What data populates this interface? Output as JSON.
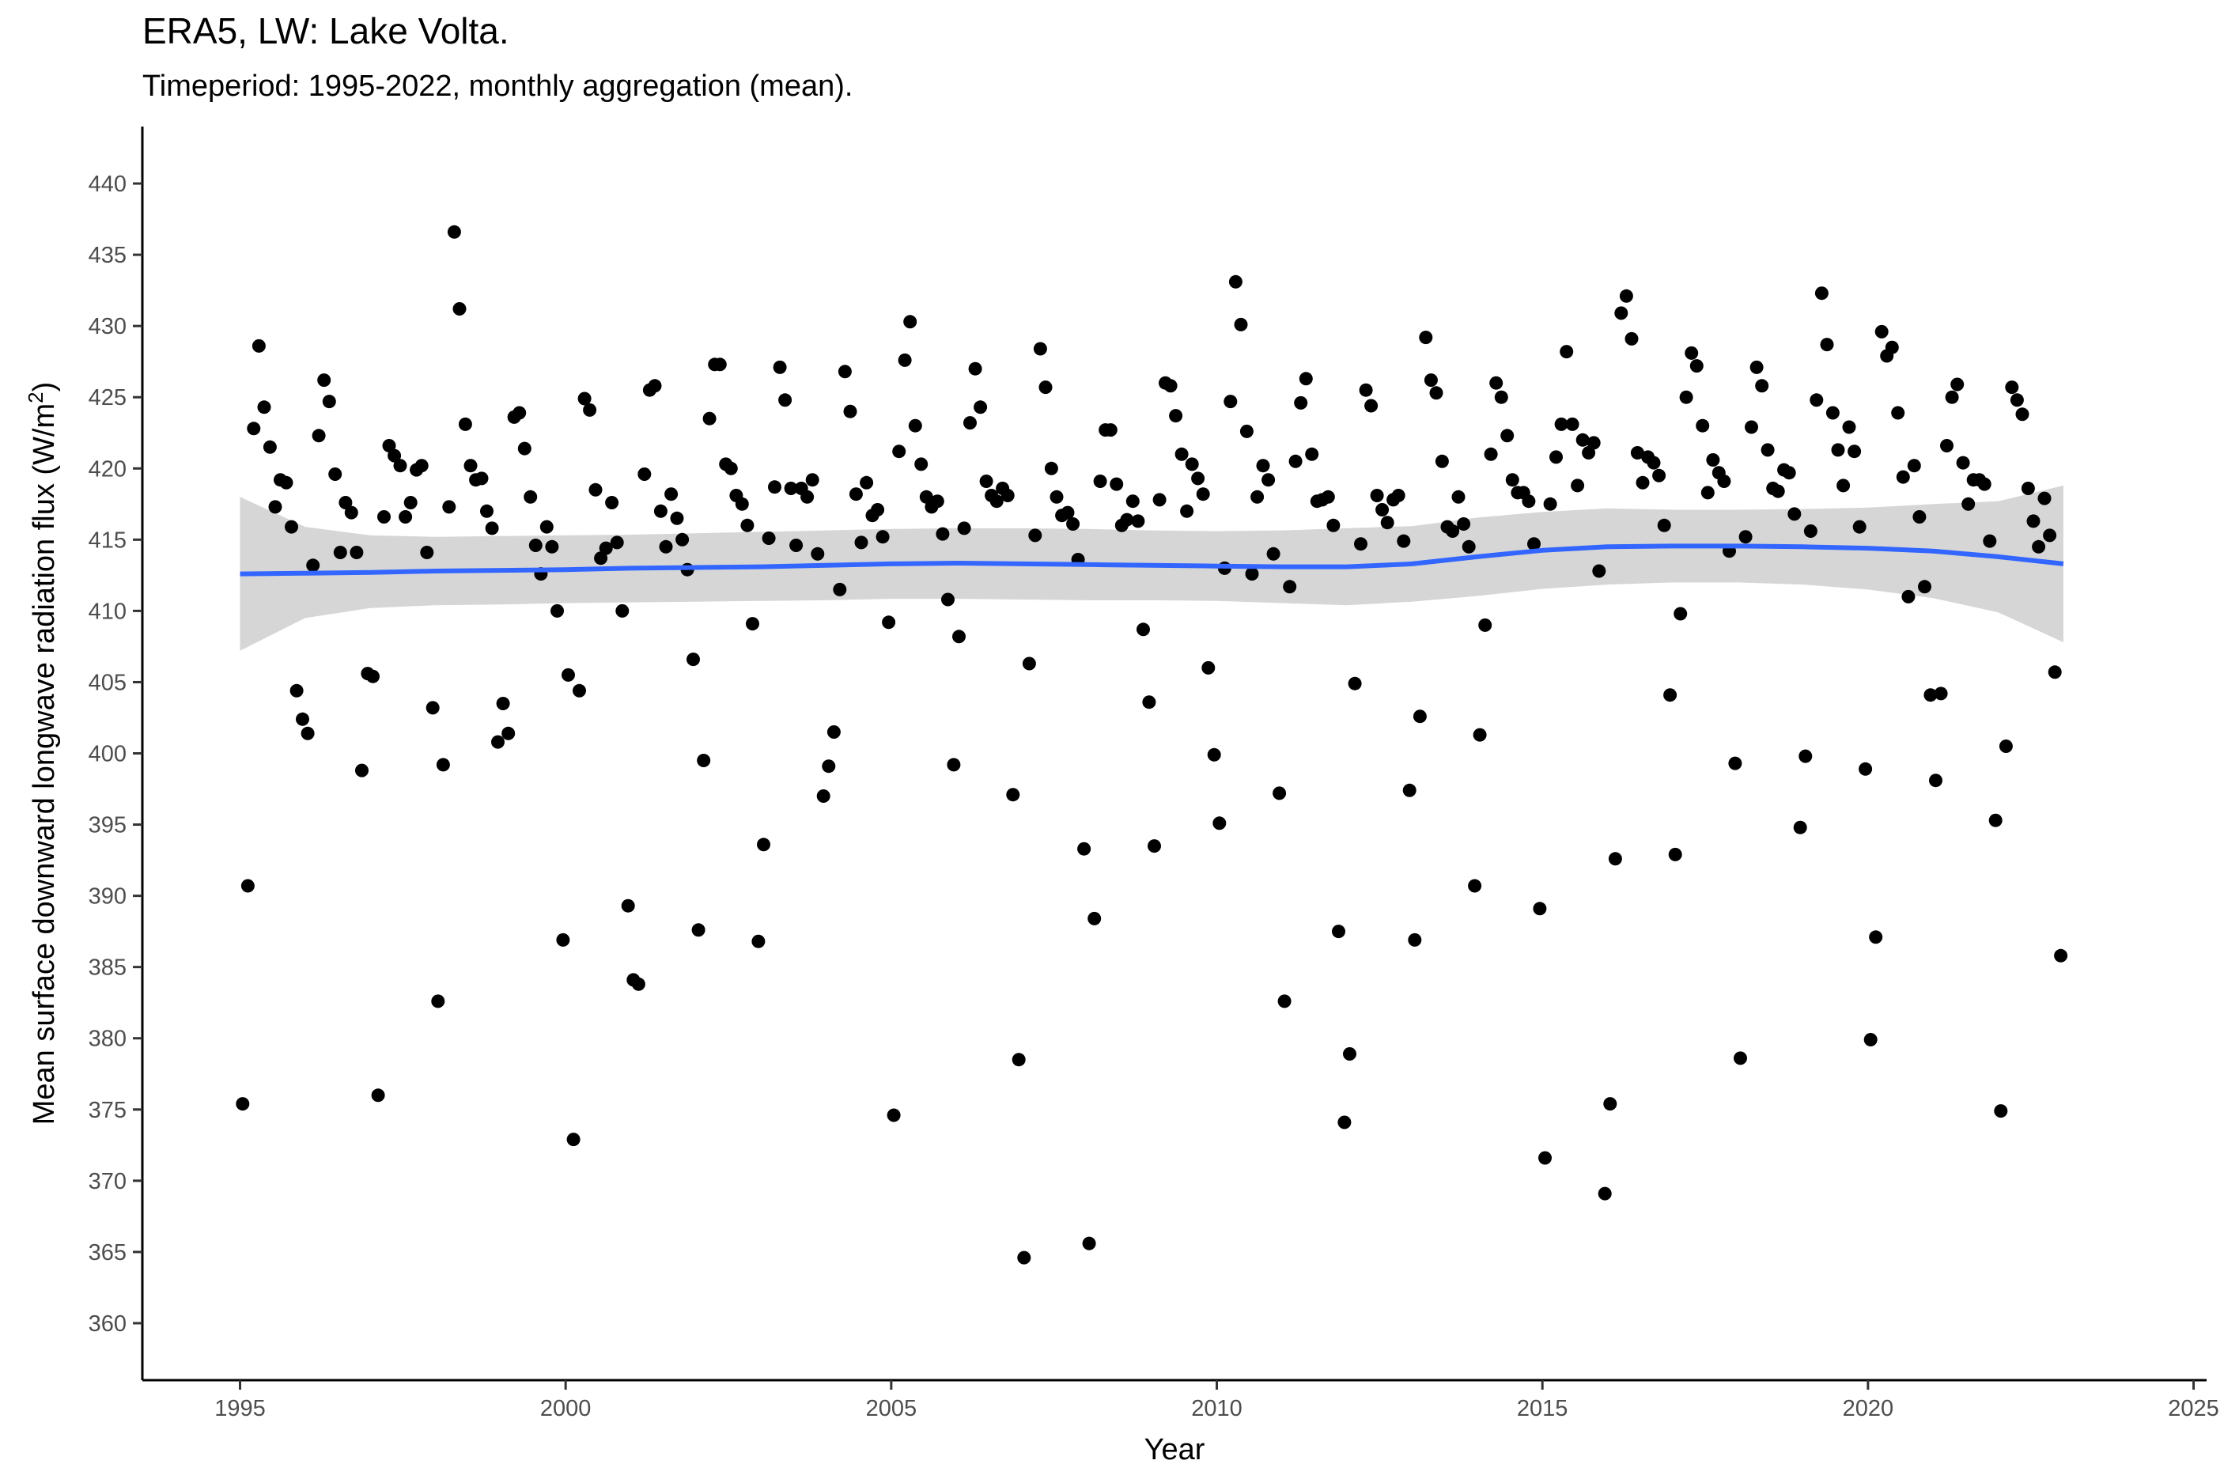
{
  "title": "ERA5, LW: Lake Volta.",
  "subtitle": "Timeperiod: 1995-2022, monthly aggregation (mean).",
  "chart_data": {
    "type": "scatter",
    "xlabel": "Year",
    "ylabel": "Mean surface downward longwave radiation flux (W/m²)",
    "ylabel_parts": {
      "main": "Mean surface downward longwave radiation flux (W/m",
      "sup": "2",
      "end": ")"
    },
    "xlim": [
      1993.5,
      2025.2
    ],
    "ylim": [
      356,
      444
    ],
    "x_ticks": [
      1995,
      2000,
      2005,
      2010,
      2015,
      2020,
      2025
    ],
    "y_ticks": [
      360,
      365,
      370,
      375,
      380,
      385,
      390,
      395,
      400,
      405,
      410,
      415,
      420,
      425,
      430,
      435,
      440
    ],
    "grid": false,
    "colors": {
      "points": "#000000",
      "smooth_line": "#3366ff",
      "ribbon": "#cccccc"
    },
    "points": [
      [
        1995.04,
        375.4
      ],
      [
        1995.12,
        390.7
      ],
      [
        1995.21,
        422.8
      ],
      [
        1995.29,
        428.6
      ],
      [
        1995.37,
        424.3
      ],
      [
        1995.46,
        421.5
      ],
      [
        1995.54,
        417.3
      ],
      [
        1995.62,
        419.2
      ],
      [
        1995.71,
        419.0
      ],
      [
        1995.79,
        415.9
      ],
      [
        1995.87,
        404.4
      ],
      [
        1995.96,
        402.4
      ],
      [
        1996.04,
        401.4
      ],
      [
        1996.12,
        413.2
      ],
      [
        1996.21,
        422.3
      ],
      [
        1996.29,
        426.2
      ],
      [
        1996.37,
        424.7
      ],
      [
        1996.46,
        419.6
      ],
      [
        1996.54,
        414.1
      ],
      [
        1996.62,
        417.6
      ],
      [
        1996.71,
        416.9
      ],
      [
        1996.79,
        414.1
      ],
      [
        1996.87,
        398.8
      ],
      [
        1996.96,
        405.6
      ],
      [
        1997.04,
        405.4
      ],
      [
        1997.12,
        376.0
      ],
      [
        1997.21,
        416.6
      ],
      [
        1997.29,
        421.6
      ],
      [
        1997.37,
        420.9
      ],
      [
        1997.46,
        420.2
      ],
      [
        1997.54,
        416.6
      ],
      [
        1997.62,
        417.6
      ],
      [
        1997.71,
        419.9
      ],
      [
        1997.79,
        420.2
      ],
      [
        1997.87,
        414.1
      ],
      [
        1997.96,
        403.2
      ],
      [
        1998.04,
        382.6
      ],
      [
        1998.12,
        399.2
      ],
      [
        1998.21,
        417.3
      ],
      [
        1998.29,
        436.6
      ],
      [
        1998.37,
        431.2
      ],
      [
        1998.46,
        423.1
      ],
      [
        1998.54,
        420.2
      ],
      [
        1998.62,
        419.2
      ],
      [
        1998.71,
        419.3
      ],
      [
        1998.79,
        417.0
      ],
      [
        1998.87,
        415.8
      ],
      [
        1998.96,
        400.8
      ],
      [
        1999.04,
        403.5
      ],
      [
        1999.12,
        401.4
      ],
      [
        1999.21,
        423.6
      ],
      [
        1999.29,
        423.9
      ],
      [
        1999.37,
        421.4
      ],
      [
        1999.46,
        418.0
      ],
      [
        1999.54,
        414.6
      ],
      [
        1999.62,
        412.6
      ],
      [
        1999.71,
        415.9
      ],
      [
        1999.79,
        414.5
      ],
      [
        1999.87,
        410.0
      ],
      [
        1999.96,
        386.9
      ],
      [
        2000.04,
        405.5
      ],
      [
        2000.12,
        372.9
      ],
      [
        2000.21,
        404.4
      ],
      [
        2000.29,
        424.9
      ],
      [
        2000.37,
        424.1
      ],
      [
        2000.46,
        418.5
      ],
      [
        2000.54,
        413.7
      ],
      [
        2000.62,
        414.4
      ],
      [
        2000.71,
        417.6
      ],
      [
        2000.79,
        414.8
      ],
      [
        2000.87,
        410.0
      ],
      [
        2000.96,
        389.3
      ],
      [
        2001.04,
        384.1
      ],
      [
        2001.12,
        383.8
      ],
      [
        2001.21,
        419.6
      ],
      [
        2001.29,
        425.5
      ],
      [
        2001.37,
        425.8
      ],
      [
        2001.46,
        417.0
      ],
      [
        2001.54,
        414.5
      ],
      [
        2001.62,
        418.2
      ],
      [
        2001.71,
        416.5
      ],
      [
        2001.79,
        415.0
      ],
      [
        2001.87,
        412.9
      ],
      [
        2001.96,
        406.6
      ],
      [
        2002.04,
        387.6
      ],
      [
        2002.12,
        399.5
      ],
      [
        2002.21,
        423.5
      ],
      [
        2002.29,
        427.3
      ],
      [
        2002.37,
        427.3
      ],
      [
        2002.46,
        420.3
      ],
      [
        2002.54,
        420.0
      ],
      [
        2002.62,
        418.1
      ],
      [
        2002.71,
        417.5
      ],
      [
        2002.79,
        416.0
      ],
      [
        2002.87,
        409.1
      ],
      [
        2002.96,
        386.8
      ],
      [
        2003.04,
        393.6
      ],
      [
        2003.12,
        415.1
      ],
      [
        2003.21,
        418.7
      ],
      [
        2003.29,
        427.1
      ],
      [
        2003.37,
        424.8
      ],
      [
        2003.46,
        418.6
      ],
      [
        2003.54,
        414.6
      ],
      [
        2003.62,
        418.6
      ],
      [
        2003.71,
        418.0
      ],
      [
        2003.79,
        419.2
      ],
      [
        2003.87,
        414.0
      ],
      [
        2003.96,
        397.0
      ],
      [
        2004.04,
        399.1
      ],
      [
        2004.12,
        401.5
      ],
      [
        2004.21,
        411.5
      ],
      [
        2004.29,
        426.8
      ],
      [
        2004.37,
        424.0
      ],
      [
        2004.46,
        418.2
      ],
      [
        2004.54,
        414.8
      ],
      [
        2004.62,
        419.0
      ],
      [
        2004.71,
        416.7
      ],
      [
        2004.79,
        417.1
      ],
      [
        2004.87,
        415.2
      ],
      [
        2004.96,
        409.2
      ],
      [
        2005.04,
        374.6
      ],
      [
        2005.12,
        421.2
      ],
      [
        2005.21,
        427.6
      ],
      [
        2005.29,
        430.3
      ],
      [
        2005.37,
        423.0
      ],
      [
        2005.46,
        420.3
      ],
      [
        2005.54,
        418.0
      ],
      [
        2005.62,
        417.3
      ],
      [
        2005.71,
        417.7
      ],
      [
        2005.79,
        415.4
      ],
      [
        2005.87,
        410.8
      ],
      [
        2005.96,
        399.2
      ],
      [
        2006.04,
        408.2
      ],
      [
        2006.12,
        415.8
      ],
      [
        2006.21,
        423.2
      ],
      [
        2006.29,
        427.0
      ],
      [
        2006.37,
        424.3
      ],
      [
        2006.46,
        419.1
      ],
      [
        2006.54,
        418.1
      ],
      [
        2006.62,
        417.7
      ],
      [
        2006.71,
        418.6
      ],
      [
        2006.79,
        418.1
      ],
      [
        2006.87,
        397.1
      ],
      [
        2006.96,
        378.5
      ],
      [
        2007.04,
        364.6
      ],
      [
        2007.12,
        406.3
      ],
      [
        2007.21,
        415.3
      ],
      [
        2007.29,
        428.4
      ],
      [
        2007.37,
        425.7
      ],
      [
        2007.46,
        420.0
      ],
      [
        2007.54,
        418.0
      ],
      [
        2007.62,
        416.7
      ],
      [
        2007.71,
        416.9
      ],
      [
        2007.79,
        416.1
      ],
      [
        2007.87,
        413.6
      ],
      [
        2007.96,
        393.3
      ],
      [
        2008.04,
        365.6
      ],
      [
        2008.12,
        388.4
      ],
      [
        2008.21,
        419.1
      ],
      [
        2008.29,
        422.7
      ],
      [
        2008.37,
        422.7
      ],
      [
        2008.46,
        418.9
      ],
      [
        2008.54,
        416.0
      ],
      [
        2008.62,
        416.4
      ],
      [
        2008.71,
        417.7
      ],
      [
        2008.79,
        416.3
      ],
      [
        2008.87,
        408.7
      ],
      [
        2008.96,
        403.6
      ],
      [
        2009.04,
        393.5
      ],
      [
        2009.12,
        417.8
      ],
      [
        2009.21,
        426.0
      ],
      [
        2009.29,
        425.8
      ],
      [
        2009.37,
        423.7
      ],
      [
        2009.46,
        421.0
      ],
      [
        2009.54,
        417.0
      ],
      [
        2009.62,
        420.3
      ],
      [
        2009.71,
        419.3
      ],
      [
        2009.79,
        418.2
      ],
      [
        2009.87,
        406.0
      ],
      [
        2009.96,
        399.9
      ],
      [
        2010.04,
        395.1
      ],
      [
        2010.12,
        413.0
      ],
      [
        2010.21,
        424.7
      ],
      [
        2010.29,
        433.1
      ],
      [
        2010.37,
        430.1
      ],
      [
        2010.46,
        422.6
      ],
      [
        2010.54,
        412.6
      ],
      [
        2010.62,
        418.0
      ],
      [
        2010.71,
        420.2
      ],
      [
        2010.79,
        419.2
      ],
      [
        2010.87,
        414.0
      ],
      [
        2010.96,
        397.2
      ],
      [
        2011.04,
        382.6
      ],
      [
        2011.12,
        411.7
      ],
      [
        2011.21,
        420.5
      ],
      [
        2011.29,
        424.6
      ],
      [
        2011.37,
        426.3
      ],
      [
        2011.46,
        421.0
      ],
      [
        2011.54,
        417.7
      ],
      [
        2011.62,
        417.8
      ],
      [
        2011.71,
        418.0
      ],
      [
        2011.79,
        416.0
      ],
      [
        2011.87,
        387.5
      ],
      [
        2011.96,
        374.1
      ],
      [
        2012.04,
        378.9
      ],
      [
        2012.12,
        404.9
      ],
      [
        2012.21,
        414.7
      ],
      [
        2012.29,
        425.5
      ],
      [
        2012.37,
        424.4
      ],
      [
        2012.46,
        418.1
      ],
      [
        2012.54,
        417.1
      ],
      [
        2012.62,
        416.2
      ],
      [
        2012.71,
        417.8
      ],
      [
        2012.79,
        418.1
      ],
      [
        2012.87,
        414.9
      ],
      [
        2012.96,
        397.4
      ],
      [
        2013.04,
        386.9
      ],
      [
        2013.12,
        402.6
      ],
      [
        2013.21,
        429.2
      ],
      [
        2013.29,
        426.2
      ],
      [
        2013.37,
        425.3
      ],
      [
        2013.46,
        420.5
      ],
      [
        2013.54,
        415.9
      ],
      [
        2013.62,
        415.6
      ],
      [
        2013.71,
        418.0
      ],
      [
        2013.79,
        416.1
      ],
      [
        2013.87,
        414.5
      ],
      [
        2013.96,
        390.7
      ],
      [
        2014.04,
        401.3
      ],
      [
        2014.12,
        409.0
      ],
      [
        2014.21,
        421.0
      ],
      [
        2014.29,
        426.0
      ],
      [
        2014.37,
        425.0
      ],
      [
        2014.46,
        422.3
      ],
      [
        2014.54,
        419.2
      ],
      [
        2014.62,
        418.3
      ],
      [
        2014.71,
        418.3
      ],
      [
        2014.79,
        417.7
      ],
      [
        2014.87,
        414.7
      ],
      [
        2014.96,
        389.1
      ],
      [
        2015.04,
        371.6
      ],
      [
        2015.12,
        417.5
      ],
      [
        2015.21,
        420.8
      ],
      [
        2015.29,
        423.1
      ],
      [
        2015.37,
        428.2
      ],
      [
        2015.46,
        423.1
      ],
      [
        2015.54,
        418.8
      ],
      [
        2015.62,
        422.0
      ],
      [
        2015.71,
        421.1
      ],
      [
        2015.79,
        421.8
      ],
      [
        2015.87,
        412.8
      ],
      [
        2015.96,
        369.1
      ],
      [
        2016.04,
        375.4
      ],
      [
        2016.12,
        392.6
      ],
      [
        2016.21,
        430.9
      ],
      [
        2016.29,
        432.1
      ],
      [
        2016.37,
        429.1
      ],
      [
        2016.46,
        421.1
      ],
      [
        2016.54,
        419.0
      ],
      [
        2016.62,
        420.8
      ],
      [
        2016.71,
        420.4
      ],
      [
        2016.79,
        419.5
      ],
      [
        2016.87,
        416.0
      ],
      [
        2016.96,
        404.1
      ],
      [
        2017.04,
        392.9
      ],
      [
        2017.12,
        409.8
      ],
      [
        2017.21,
        425.0
      ],
      [
        2017.29,
        428.1
      ],
      [
        2017.37,
        427.2
      ],
      [
        2017.46,
        423.0
      ],
      [
        2017.54,
        418.3
      ],
      [
        2017.62,
        420.6
      ],
      [
        2017.71,
        419.7
      ],
      [
        2017.79,
        419.1
      ],
      [
        2017.87,
        414.2
      ],
      [
        2017.96,
        399.3
      ],
      [
        2018.04,
        378.6
      ],
      [
        2018.12,
        415.2
      ],
      [
        2018.21,
        422.9
      ],
      [
        2018.29,
        427.1
      ],
      [
        2018.37,
        425.8
      ],
      [
        2018.46,
        421.3
      ],
      [
        2018.54,
        418.6
      ],
      [
        2018.62,
        418.4
      ],
      [
        2018.71,
        419.9
      ],
      [
        2018.79,
        419.7
      ],
      [
        2018.87,
        416.8
      ],
      [
        2018.96,
        394.8
      ],
      [
        2019.04,
        399.8
      ],
      [
        2019.12,
        415.6
      ],
      [
        2019.21,
        424.8
      ],
      [
        2019.29,
        432.3
      ],
      [
        2019.37,
        428.7
      ],
      [
        2019.46,
        423.9
      ],
      [
        2019.54,
        421.3
      ],
      [
        2019.62,
        418.8
      ],
      [
        2019.71,
        422.9
      ],
      [
        2019.79,
        421.2
      ],
      [
        2019.87,
        415.9
      ],
      [
        2019.96,
        398.9
      ],
      [
        2020.04,
        379.9
      ],
      [
        2020.12,
        387.1
      ],
      [
        2020.21,
        429.6
      ],
      [
        2020.29,
        427.9
      ],
      [
        2020.37,
        428.5
      ],
      [
        2020.46,
        423.9
      ],
      [
        2020.54,
        419.4
      ],
      [
        2020.62,
        411.0
      ],
      [
        2020.71,
        420.2
      ],
      [
        2020.79,
        416.6
      ],
      [
        2020.87,
        411.7
      ],
      [
        2020.96,
        404.1
      ],
      [
        2021.04,
        398.1
      ],
      [
        2021.12,
        404.2
      ],
      [
        2021.21,
        421.6
      ],
      [
        2021.29,
        425.0
      ],
      [
        2021.37,
        425.9
      ],
      [
        2021.46,
        420.4
      ],
      [
        2021.54,
        417.5
      ],
      [
        2021.62,
        419.2
      ],
      [
        2021.71,
        419.2
      ],
      [
        2021.79,
        418.9
      ],
      [
        2021.87,
        414.9
      ],
      [
        2021.96,
        395.3
      ],
      [
        2022.04,
        374.9
      ],
      [
        2022.12,
        400.5
      ],
      [
        2022.21,
        425.7
      ],
      [
        2022.29,
        424.8
      ],
      [
        2022.37,
        423.8
      ],
      [
        2022.46,
        418.6
      ],
      [
        2022.54,
        416.3
      ],
      [
        2022.62,
        414.5
      ],
      [
        2022.71,
        417.9
      ],
      [
        2022.79,
        415.3
      ],
      [
        2022.87,
        405.7
      ],
      [
        2022.96,
        385.8
      ]
    ],
    "smooth": {
      "x": [
        1995.0,
        1996.0,
        1997.0,
        1998.0,
        1999.0,
        2000.0,
        2001.0,
        2002.0,
        2003.0,
        2004.0,
        2005.0,
        2006.0,
        2007.0,
        2008.0,
        2009.0,
        2010.0,
        2011.0,
        2012.0,
        2013.0,
        2014.0,
        2015.0,
        2016.0,
        2017.0,
        2018.0,
        2019.0,
        2020.0,
        2021.0,
        2022.0,
        2023.0
      ],
      "y": [
        412.6,
        412.65,
        412.7,
        412.8,
        412.85,
        412.9,
        413.0,
        413.05,
        413.1,
        413.2,
        413.3,
        413.35,
        413.3,
        413.25,
        413.2,
        413.15,
        413.1,
        413.1,
        413.3,
        413.8,
        414.25,
        414.5,
        414.55,
        414.55,
        414.5,
        414.4,
        414.2,
        413.8,
        413.3
      ],
      "lower": [
        407.2,
        409.5,
        410.2,
        410.4,
        410.45,
        410.55,
        410.6,
        410.65,
        410.7,
        410.75,
        410.85,
        410.85,
        410.8,
        410.75,
        410.75,
        410.7,
        410.55,
        410.4,
        410.65,
        411.05,
        411.55,
        411.85,
        412.0,
        412.0,
        411.85,
        411.5,
        410.9,
        409.9,
        407.8
      ],
      "upper": [
        418.0,
        415.9,
        415.3,
        415.2,
        415.25,
        415.3,
        415.35,
        415.45,
        415.55,
        415.65,
        415.75,
        415.8,
        415.8,
        415.75,
        415.65,
        415.6,
        415.65,
        415.8,
        415.95,
        416.55,
        416.95,
        417.2,
        417.1,
        417.1,
        417.15,
        417.25,
        417.5,
        417.7,
        418.8
      ]
    }
  }
}
